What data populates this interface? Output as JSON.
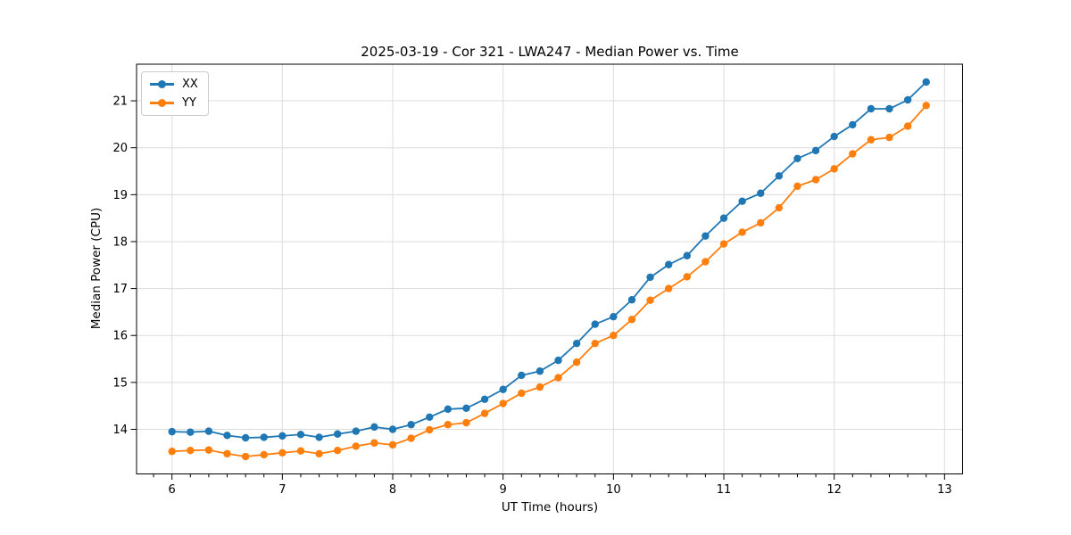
{
  "chart_data": {
    "type": "line",
    "title": "2025-03-19 - Cor 321 - LWA247 - Median Power vs. Time",
    "xlabel": "UT Time (hours)",
    "ylabel": "Median Power (CPU)",
    "xlim": [
      5.679,
      13.163
    ],
    "ylim": [
      13.05,
      21.78
    ],
    "x_ticks": [
      6,
      7,
      8,
      9,
      10,
      11,
      12,
      13
    ],
    "y_ticks": [
      14,
      15,
      16,
      17,
      18,
      19,
      20,
      21
    ],
    "x_minor_tick_step": 0.166667,
    "grid": true,
    "grid_color": "#dcdcdc",
    "legend_position": "upper left",
    "marker": "o",
    "x": [
      6.0,
      6.1667,
      6.3333,
      6.5,
      6.6667,
      6.8333,
      7.0,
      7.1667,
      7.3333,
      7.5,
      7.6667,
      7.8333,
      8.0,
      8.1667,
      8.3333,
      8.5,
      8.6667,
      8.8333,
      9.0,
      9.1667,
      9.3333,
      9.5,
      9.6667,
      9.8333,
      10.0,
      10.1667,
      10.3333,
      10.5,
      10.6667,
      10.8333,
      11.0,
      11.1667,
      11.3333,
      11.5,
      11.6667,
      11.8333,
      12.0,
      12.1667,
      12.3333,
      12.5,
      12.6667,
      12.8333
    ],
    "series": [
      {
        "name": "XX",
        "color": "#1f77b4",
        "values": [
          13.95,
          13.94,
          13.96,
          13.87,
          13.82,
          13.83,
          13.86,
          13.89,
          13.83,
          13.9,
          13.96,
          14.05,
          14.0,
          14.1,
          14.26,
          14.43,
          14.45,
          14.64,
          14.85,
          15.15,
          15.24,
          15.47,
          15.83,
          16.24,
          16.4,
          16.76,
          17.24,
          17.51,
          17.7,
          18.12,
          18.5,
          18.86,
          19.03,
          19.4,
          19.77,
          19.94,
          20.24,
          20.49,
          20.83,
          20.83,
          21.02,
          21.4
        ]
      },
      {
        "name": "YY",
        "color": "#ff7f0e",
        "values": [
          13.53,
          13.55,
          13.56,
          13.48,
          13.42,
          13.46,
          13.5,
          13.54,
          13.48,
          13.55,
          13.64,
          13.71,
          13.67,
          13.81,
          13.99,
          14.1,
          14.14,
          14.34,
          14.55,
          14.77,
          14.9,
          15.1,
          15.43,
          15.83,
          16.0,
          16.34,
          16.75,
          17.0,
          17.25,
          17.57,
          17.95,
          18.2,
          18.4,
          18.72,
          19.18,
          19.32,
          19.55,
          19.87,
          20.17,
          20.22,
          20.46,
          20.9
        ]
      }
    ]
  }
}
